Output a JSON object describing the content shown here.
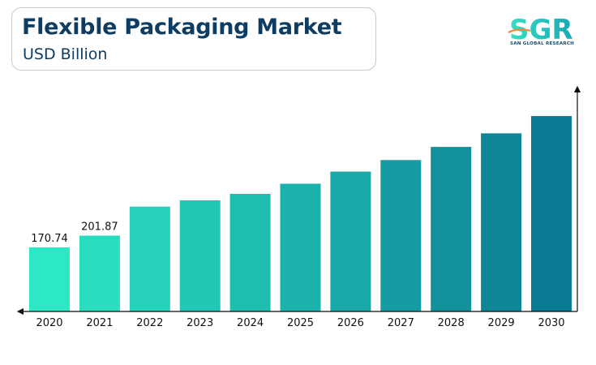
{
  "header": {
    "title": "Flexible Packaging Market",
    "subtitle": "USD Billion"
  },
  "logo": {
    "mark": "SGR",
    "tagline": "SAN GLOBAL RESEARCH"
  },
  "colors": {
    "title": "#0e3d63",
    "bar_start": "#2de8c4",
    "bar_end": "#0b7b93"
  },
  "chart_data": {
    "type": "bar",
    "title": "Flexible Packaging Market",
    "subtitle": "USD Billion",
    "xlabel": "",
    "ylabel": "",
    "categories": [
      "2020",
      "2021",
      "2022",
      "2023",
      "2024",
      "2025",
      "2026",
      "2027",
      "2028",
      "2029",
      "2030"
    ],
    "values": [
      170.74,
      201.87,
      279,
      296,
      313,
      340,
      372,
      403,
      438,
      474,
      520
    ],
    "data_labels": [
      "170.74",
      "201.87",
      "",
      "",
      "",
      "",
      "",
      "",
      "",
      "",
      ""
    ],
    "ylim": [
      0,
      600
    ],
    "grid": false,
    "legend": "none"
  }
}
